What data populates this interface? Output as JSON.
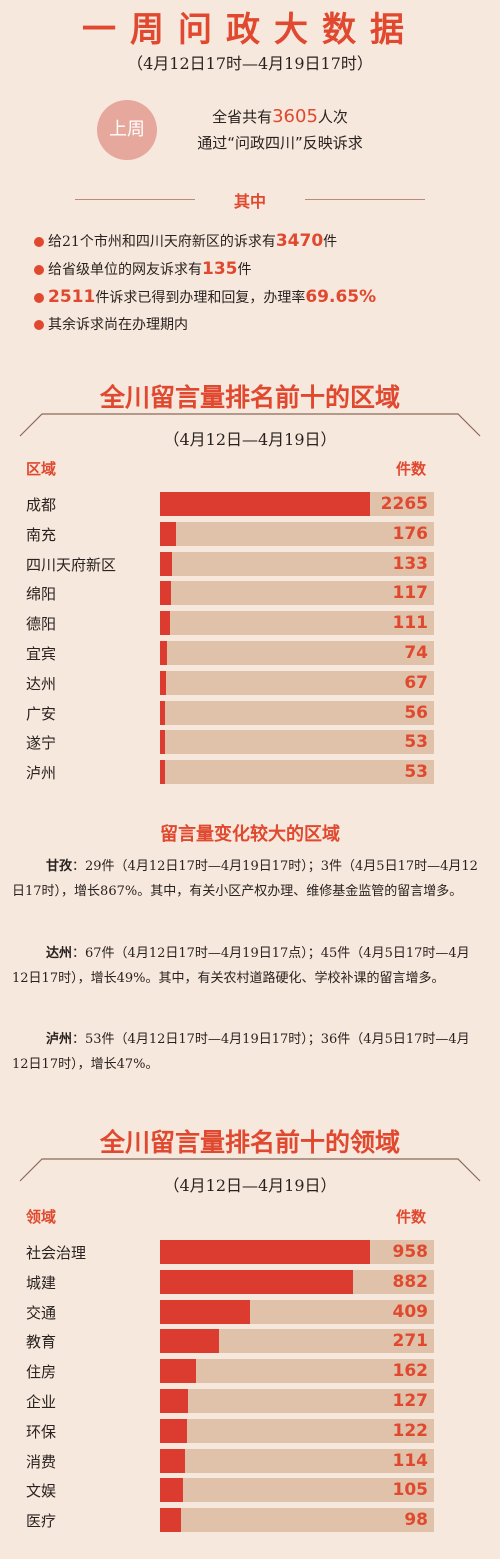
{
  "header": {
    "title": "一周问政大数据",
    "subtitle": "（4月12日17时—4月19日17时）",
    "badge": "上周",
    "intro_pre": "全省共有",
    "intro_num": "3605",
    "intro_post": "人次",
    "intro_line2": "通过“问政四川”反映诉求"
  },
  "summary": {
    "heading": "其中",
    "items": [
      {
        "pre": "给21个市州和四川天府新区的诉求有",
        "hl": "3470",
        "post": "件"
      },
      {
        "pre": "给省级单位的网友诉求有",
        "hl": "135",
        "post": "件"
      },
      {
        "hl": "2511",
        "mid": "件诉求已得到办理和回复，办理率",
        "hl2": "69.65%"
      },
      {
        "pre": "其余诉求尚在办理期内"
      }
    ]
  },
  "colors": {
    "accent": "#e0492f",
    "bar_fill": "#dc3c30",
    "bar_track": "#dfc2a9",
    "background": "#f6e8dc"
  },
  "regions": {
    "title": "全川留言量排名前十的区域",
    "date": "（4月12日—4月19日）",
    "col_left": "区域",
    "col_right": "件数"
  },
  "changes": {
    "title": "留言量变化较大的区域",
    "paras": [
      {
        "name": "甘孜",
        "text": "：29件（4月12日17时—4月19日17时）；3件（4月5日17时—4月12日17时），增长867%。其中，有关小区产权办理、维修基金监管的留言增多。"
      },
      {
        "name": "达州",
        "text": "：67件（4月12日17时—4月19日17点）；45件（4月5日17时—4月12日17时），增长49%。其中，有关农村道路硬化、学校补课的留言增多。"
      },
      {
        "name": "泸州",
        "text": "：53件（4月12日17时—4月19日17时）；36件（4月5日17时—4月12日17时），增长47%。"
      }
    ]
  },
  "fields": {
    "title": "全川留言量排名前十的领域",
    "date": "（4月12日—4月19日）",
    "col_left": "领域",
    "col_right": "件数"
  },
  "chart_data": [
    {
      "type": "bar",
      "orientation": "horizontal",
      "title": "全川留言量排名前十的区域",
      "categories": [
        "成都",
        "南充",
        "四川天府新区",
        "绵阳",
        "德阳",
        "宜宾",
        "达州",
        "广安",
        "遂宁",
        "泸州"
      ],
      "values": [
        2265,
        176,
        133,
        117,
        111,
        74,
        67,
        56,
        53,
        53
      ],
      "xlabel": "件数",
      "ylabel": "区域"
    },
    {
      "type": "bar",
      "orientation": "horizontal",
      "title": "全川留言量排名前十的领域",
      "categories": [
        "社会治理",
        "城建",
        "交通",
        "教育",
        "住房",
        "企业",
        "环保",
        "消费",
        "文娱",
        "医疗"
      ],
      "values": [
        958,
        882,
        409,
        271,
        162,
        127,
        122,
        114,
        105,
        98
      ],
      "xlabel": "件数",
      "ylabel": "领域"
    }
  ]
}
